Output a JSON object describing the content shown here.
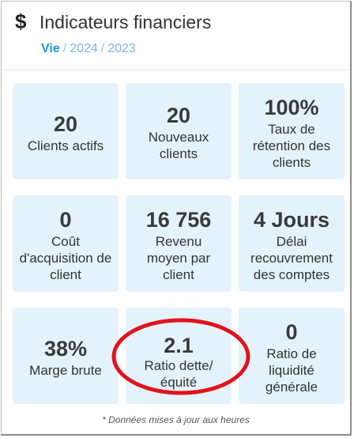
{
  "header": {
    "icon": "dollar-icon",
    "title": "Indicateurs financiers",
    "tabs": [
      {
        "label": "Vie",
        "active": true
      },
      {
        "label": "2024",
        "active": false
      },
      {
        "label": "2023",
        "active": false
      }
    ],
    "separator": "/"
  },
  "tiles": [
    {
      "value": "20",
      "label": "Clients actifs"
    },
    {
      "value": "20",
      "label": "Nouveaux clients"
    },
    {
      "value": "100%",
      "label": "Taux de rétention des clients"
    },
    {
      "value": "0",
      "label": "Coût d'acquisition de client"
    },
    {
      "value": "16 756",
      "label": "Revenu moyen par client"
    },
    {
      "value": "4 Jours",
      "label": "Délai recouvrement des comptes"
    },
    {
      "value": "38%",
      "label": "Marge brute"
    },
    {
      "value": "2.1",
      "label": "Ratio dette/ équité"
    },
    {
      "value": "0",
      "label": "Ratio de liquidité générale"
    }
  ],
  "footer": {
    "note": "* Données mises à jour aux heures"
  },
  "colors": {
    "tile_bg": "#e4f3fb",
    "tab_active": "#1e96e6",
    "tab_inactive": "#74b7e5",
    "annotation": "#e0141e"
  }
}
